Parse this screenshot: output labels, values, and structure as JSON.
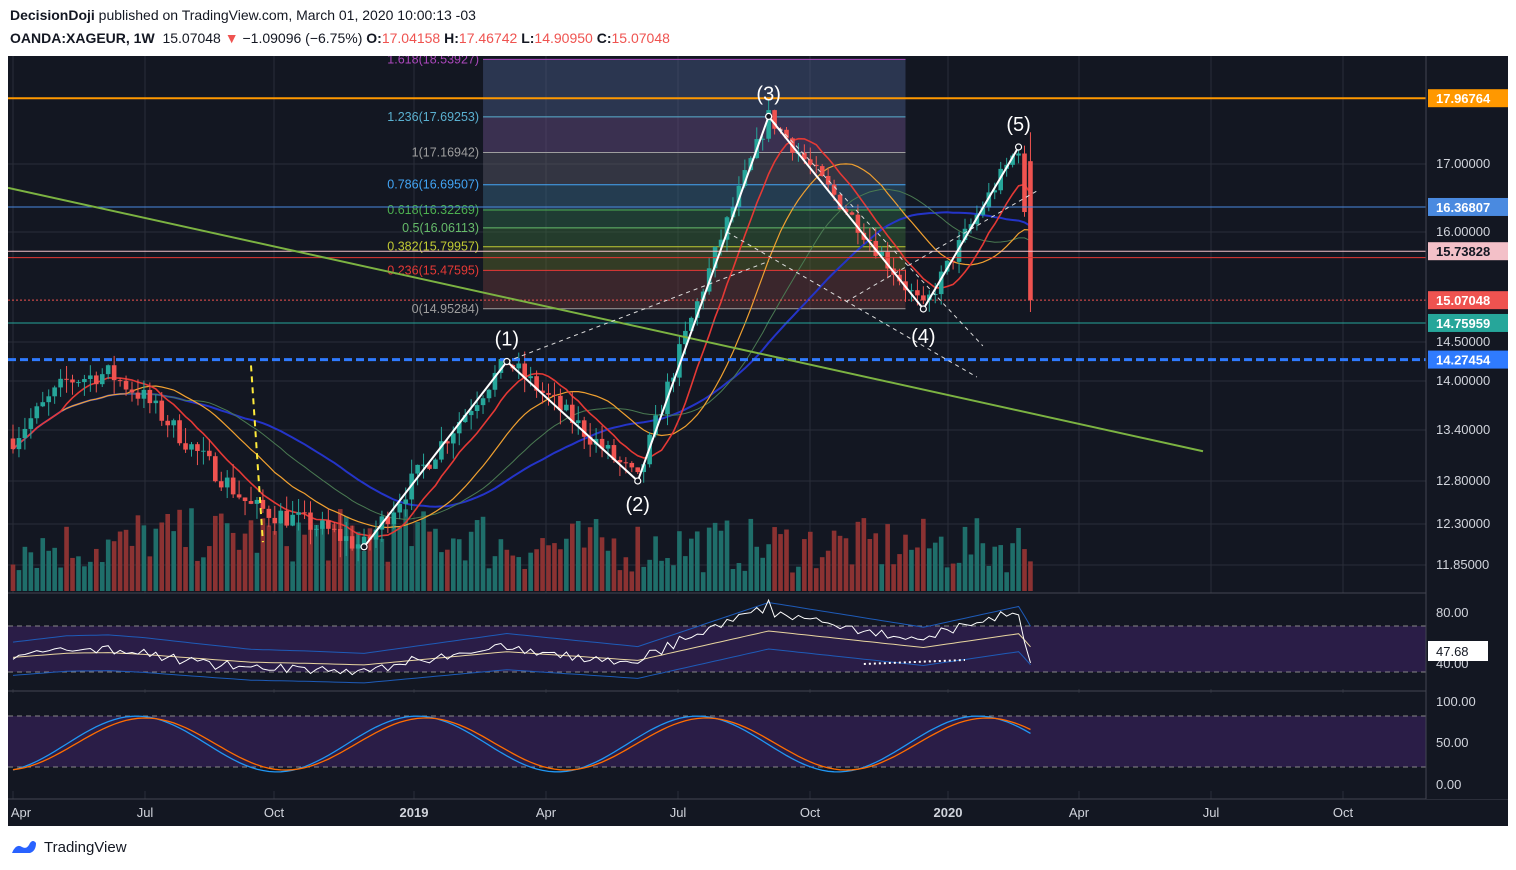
{
  "header": {
    "line1_author": "DecisionDoji",
    "line1_rest": " published on TradingView.com, March 01, 2020 10:00:13 -03",
    "symbol": "OANDA:XAGEUR, 1W",
    "last": "15.07048",
    "arrow": "▼",
    "change": "−1.09096 (−6.75%)",
    "o_label": "O:",
    "o_val": "17.04158",
    "h_label": "H:",
    "h_val": "17.46742",
    "l_label": "L:",
    "l_val": "14.90950",
    "c_label": "C:",
    "c_val": "15.07048"
  },
  "footer": {
    "brand": "TradingView"
  },
  "colors": {
    "bg": "#131722",
    "up": "#26a69a",
    "down": "#ef5350",
    "vol_up": "#1f6e6a",
    "vol_down": "#8b3232",
    "ema_red": "#e53935",
    "ema_orange": "#f0a030",
    "sma_green": "#4a7a52",
    "sma_blue": "#2434c8",
    "trend_green": "#7cb342",
    "orange_line": "#ff9800",
    "dashed_blue": "#2f7bff",
    "grid": "#2a2e39"
  },
  "chart_data": {
    "type": "candlestick",
    "symbol": "XAGEUR",
    "timeframe": "1W",
    "x_ticks": [
      "Apr",
      "Jul",
      "Oct",
      "2019",
      "Apr",
      "Jul",
      "Oct",
      "2020",
      "Apr",
      "Jul",
      "Oct"
    ],
    "price_ticks": [
      "17.00000",
      "16.00000",
      "14.50000",
      "14.00000",
      "13.40000",
      "12.80000",
      "12.30000",
      "11.85000"
    ],
    "price_labels": [
      {
        "value": "17.96764",
        "color": "#ff9800"
      },
      {
        "value": "16.36807",
        "color": "#4a8ae0"
      },
      {
        "value": "15.73828",
        "color": "#f3c0c8"
      },
      {
        "value": "15.07048",
        "color": "#ef5350"
      },
      {
        "value": "14.75959",
        "color": "#26a69a"
      },
      {
        "value": "14.27454",
        "color": "#2f7bff"
      }
    ],
    "fib_levels": [
      {
        "label": "1.618(18.53927)",
        "price": 18.53927,
        "color": "#ab47bc"
      },
      {
        "label": "1.236(17.69253)",
        "price": 17.69253,
        "color": "#5ab0d0"
      },
      {
        "label": "1(17.16942)",
        "price": 17.16942,
        "color": "#9e9e9e"
      },
      {
        "label": "0.786(16.69507)",
        "price": 16.69507,
        "color": "#42a5f5"
      },
      {
        "label": "0.618(16.32269)",
        "price": 16.32269,
        "color": "#4caf50"
      },
      {
        "label": "0.5(16.06113)",
        "price": 16.06113,
        "color": "#66bb6a"
      },
      {
        "label": "0.382(15.79957)",
        "price": 15.79957,
        "color": "#c0ca33"
      },
      {
        "label": "0.236(15.47595)",
        "price": 15.47595,
        "color": "#e53935"
      },
      {
        "label": "0(14.95284)",
        "price": 14.95284,
        "color": "#9e9e9e"
      }
    ],
    "wave_labels": [
      "(1)",
      "(2)",
      "(3)",
      "(4)",
      "(5)"
    ],
    "wave_points": [
      {
        "week": 59,
        "price": 12.05
      },
      {
        "week": 83,
        "price": 14.25
      },
      {
        "week": 105,
        "price": 12.8
      },
      {
        "week": 127,
        "price": 17.7
      },
      {
        "week": 153,
        "price": 14.95
      },
      {
        "week": 169,
        "price": 17.25
      }
    ],
    "rsi": {
      "last": "47.68",
      "ticks": [
        "80.00",
        "40.00"
      ]
    },
    "stoch": {
      "ticks": [
        "100.00",
        "50.00",
        "0.00"
      ]
    }
  }
}
